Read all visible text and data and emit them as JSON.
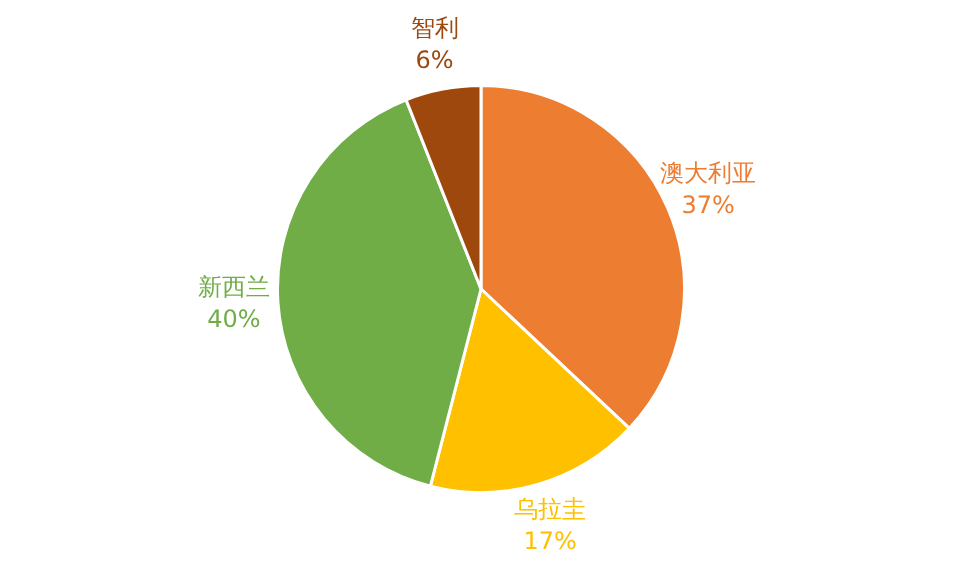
{
  "chart_data": {
    "type": "pie",
    "categories": [
      "澳大利亚",
      "乌拉圭",
      "新西兰",
      "智利"
    ],
    "values": [
      37,
      17,
      40,
      6
    ],
    "value_labels": [
      "37%",
      "17%",
      "40%",
      "6%"
    ],
    "colors": [
      "#ed7d31",
      "#ffc000",
      "#70ad47",
      "#9e480e"
    ],
    "legend": false
  }
}
